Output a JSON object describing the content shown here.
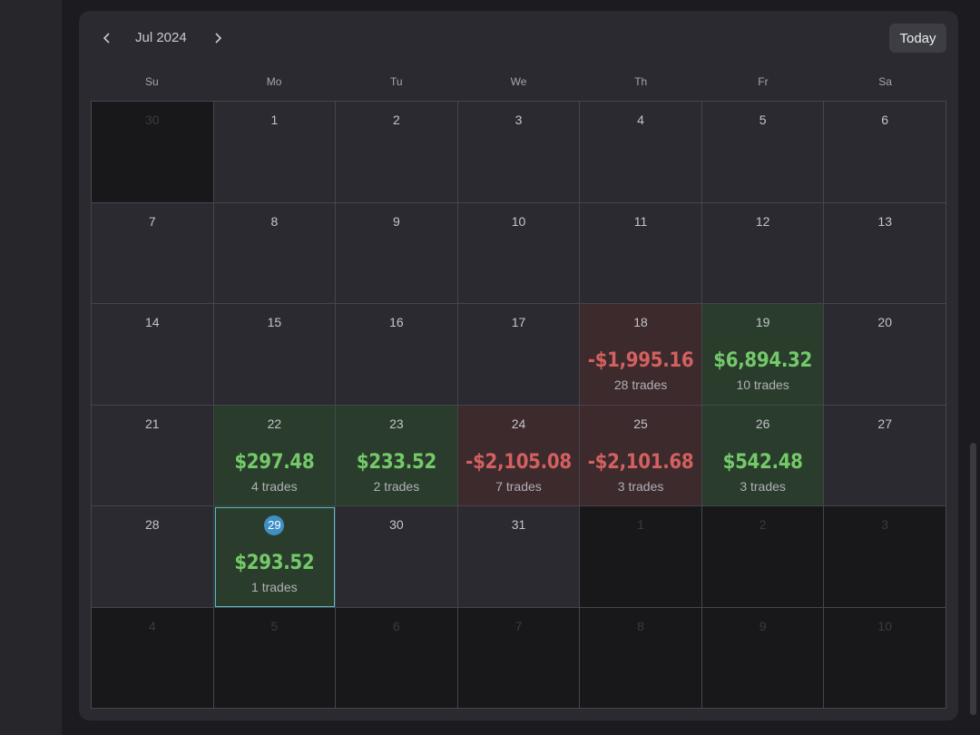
{
  "header": {
    "month_label": "Jul 2024",
    "today_label": "Today"
  },
  "weekdays": [
    "Su",
    "Mo",
    "Tu",
    "We",
    "Th",
    "Fr",
    "Sa"
  ],
  "colors": {
    "profit_text": "#74c96a",
    "loss_text": "#d46060",
    "profit_bg": "#2a3d2c",
    "loss_bg": "#3c2a2d",
    "today_marker": "#3e8fc4",
    "selected_border": "#5bb8c8"
  },
  "days": [
    {
      "day": "30",
      "outside": true
    },
    {
      "day": "1"
    },
    {
      "day": "2"
    },
    {
      "day": "3"
    },
    {
      "day": "4"
    },
    {
      "day": "5"
    },
    {
      "day": "6"
    },
    {
      "day": "7"
    },
    {
      "day": "8"
    },
    {
      "day": "9"
    },
    {
      "day": "10"
    },
    {
      "day": "11"
    },
    {
      "day": "12"
    },
    {
      "day": "13"
    },
    {
      "day": "14"
    },
    {
      "day": "15"
    },
    {
      "day": "16"
    },
    {
      "day": "17"
    },
    {
      "day": "18",
      "pnl": "-$1,995.16",
      "trades": "28 trades",
      "result": "loss"
    },
    {
      "day": "19",
      "pnl": "$6,894.32",
      "trades": "10 trades",
      "result": "profit"
    },
    {
      "day": "20"
    },
    {
      "day": "21"
    },
    {
      "day": "22",
      "pnl": "$297.48",
      "trades": "4 trades",
      "result": "profit"
    },
    {
      "day": "23",
      "pnl": "$233.52",
      "trades": "2 trades",
      "result": "profit"
    },
    {
      "day": "24",
      "pnl": "-$2,105.08",
      "trades": "7 trades",
      "result": "loss"
    },
    {
      "day": "25",
      "pnl": "-$2,101.68",
      "trades": "3 trades",
      "result": "loss"
    },
    {
      "day": "26",
      "pnl": "$542.48",
      "trades": "3 trades",
      "result": "profit"
    },
    {
      "day": "27"
    },
    {
      "day": "28"
    },
    {
      "day": "29",
      "pnl": "$293.52",
      "trades": "1 trades",
      "result": "profit",
      "today": true,
      "selected": true
    },
    {
      "day": "30"
    },
    {
      "day": "31"
    },
    {
      "day": "1",
      "outside": true
    },
    {
      "day": "2",
      "outside": true
    },
    {
      "day": "3",
      "outside": true
    },
    {
      "day": "4",
      "outside": true
    },
    {
      "day": "5",
      "outside": true
    },
    {
      "day": "6",
      "outside": true
    },
    {
      "day": "7",
      "outside": true
    },
    {
      "day": "8",
      "outside": true
    },
    {
      "day": "9",
      "outside": true
    },
    {
      "day": "10",
      "outside": true
    }
  ]
}
